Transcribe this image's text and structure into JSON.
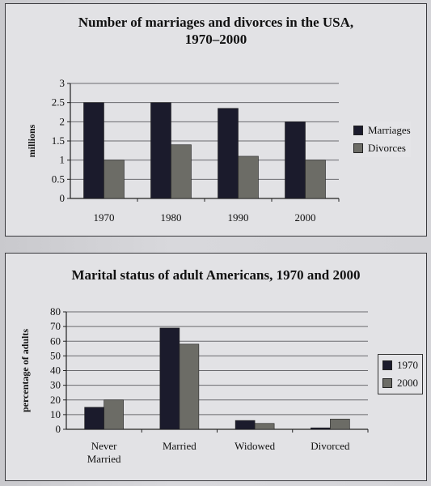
{
  "colors": {
    "series1": "#1b1b2c",
    "series2": "#6c6c66",
    "grid": "#6a6a6e",
    "axis": "#222"
  },
  "chart_data": [
    {
      "type": "bar",
      "title": "Number of marriages and divorces in the USA, 1970–2000",
      "title_lines": [
        "Number of marriages and divorces in the USA,",
        "1970–2000"
      ],
      "xlabel": "",
      "ylabel": "millions",
      "ylim": [
        0,
        3
      ],
      "yticks": [
        "0",
        "0.5",
        "1",
        "1.5",
        "2",
        "2.5",
        "3"
      ],
      "ytick_values": [
        0,
        0.5,
        1,
        1.5,
        2,
        2.5,
        3
      ],
      "grid": true,
      "legend_position": "right",
      "categories": [
        "1970",
        "1980",
        "1990",
        "2000"
      ],
      "series": [
        {
          "name": "Marriages",
          "values": [
            2.5,
            2.5,
            2.35,
            2.0
          ]
        },
        {
          "name": "Divorces",
          "values": [
            1.0,
            1.4,
            1.1,
            1.0
          ]
        }
      ]
    },
    {
      "type": "bar",
      "title": "Marital status of adult Americans, 1970 and 2000",
      "title_lines": [
        "Marital status of adult Americans, 1970 and 2000"
      ],
      "xlabel": "",
      "ylabel": "percentage of adults",
      "ylim": [
        0,
        80
      ],
      "yticks": [
        "0",
        "10",
        "20",
        "30",
        "40",
        "50",
        "60",
        "70",
        "80"
      ],
      "ytick_values": [
        0,
        10,
        20,
        30,
        40,
        50,
        60,
        70,
        80
      ],
      "grid": true,
      "legend_position": "right",
      "categories": [
        "Never Married",
        "Married",
        "Widowed",
        "Divorced"
      ],
      "category_lines": [
        [
          "Never",
          "Married"
        ],
        [
          "Married"
        ],
        [
          "Widowed"
        ],
        [
          "Divorced"
        ]
      ],
      "series": [
        {
          "name": "1970",
          "values": [
            15,
            69,
            6,
            1
          ]
        },
        {
          "name": "2000",
          "values": [
            20,
            58,
            4,
            7
          ]
        }
      ]
    }
  ]
}
